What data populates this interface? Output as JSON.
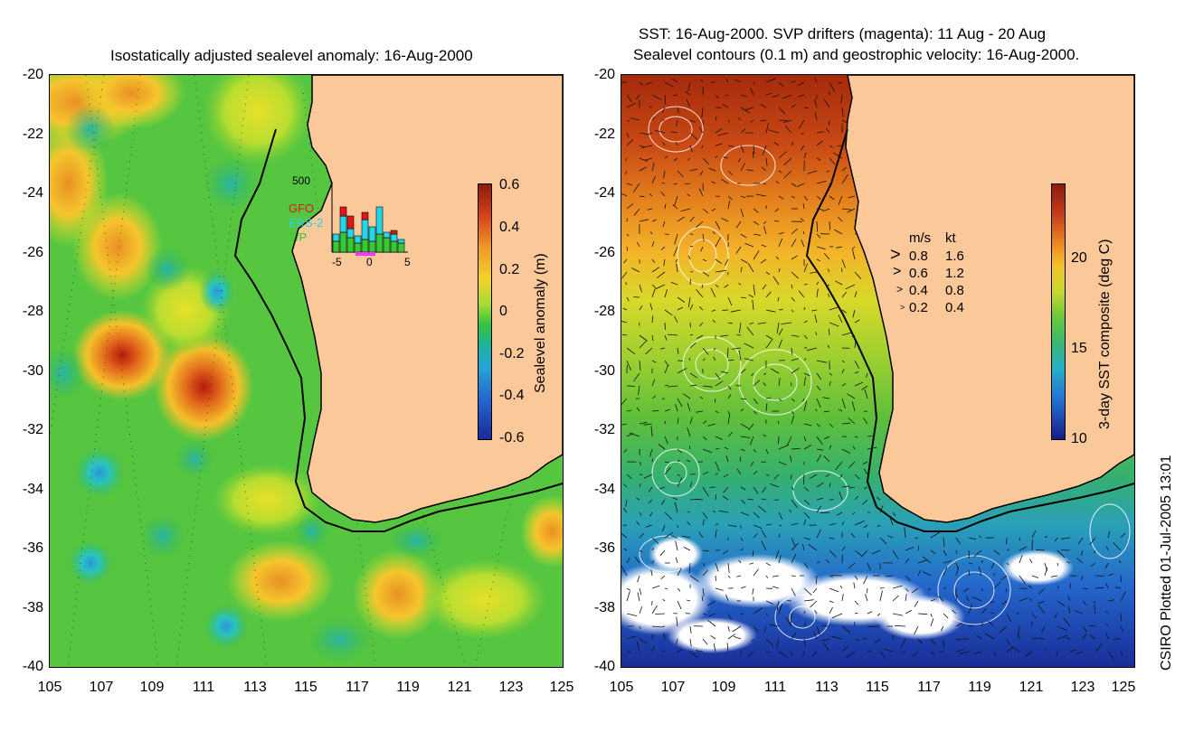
{
  "left_panel": {
    "title": "Isostatically adjusted sealevel anomaly: 16-Aug-2000",
    "y_ticks": [
      "-20",
      "-22",
      "-24",
      "-26",
      "-28",
      "-30",
      "-32",
      "-34",
      "-36",
      "-38",
      "-40"
    ],
    "x_ticks": [
      "105",
      "107",
      "109",
      "111",
      "113",
      "115",
      "117",
      "119",
      "121",
      "123",
      "125"
    ],
    "colorbar": {
      "title": "Sealevel anomaly (m)",
      "ticks": [
        "0.6",
        "0.4",
        "0.2",
        "0",
        "-0.2",
        "-0.4",
        "-0.6"
      ]
    },
    "histogram": {
      "ymax_label": "500",
      "x_ticks": [
        "-5",
        "0",
        "5"
      ],
      "legend": [
        "GFO",
        "ERS-2",
        "T/P"
      ],
      "legend_colors": [
        "#e0161b",
        "#22d6ea",
        "#33cc33"
      ]
    }
  },
  "right_panel": {
    "title_line1": "SST: 16-Aug-2000. SVP drifters (magenta): 11 Aug - 20 Aug",
    "title_line2": "Sealevel contours (0.1 m) and geostrophic velocity: 16-Aug-2000.",
    "y_ticks": [
      "-20",
      "-22",
      "-24",
      "-26",
      "-28",
      "-30",
      "-32",
      "-34",
      "-36",
      "-38",
      "-40"
    ],
    "x_ticks": [
      "105",
      "107",
      "109",
      "111",
      "113",
      "115",
      "117",
      "119",
      "121",
      "123",
      "125"
    ],
    "colorbar": {
      "title": "3-day SST composite (deg C)",
      "ticks": [
        "20",
        "15",
        "10"
      ]
    },
    "velocity_legend": {
      "header_ms": "m/s",
      "header_kt": "kt",
      "rows": [
        {
          "ms": "0.8",
          "kt": "1.6"
        },
        {
          "ms": "0.6",
          "kt": "1.2"
        },
        {
          "ms": "0.4",
          "kt": "0.8"
        },
        {
          "ms": "0.2",
          "kt": "0.4"
        }
      ]
    }
  },
  "credit": "CSIRO Plotted 01-Jul-2005 13:01",
  "colors": {
    "land": "#fbc89a",
    "coast": "#000000",
    "anomaly_bg": "#56c640"
  }
}
